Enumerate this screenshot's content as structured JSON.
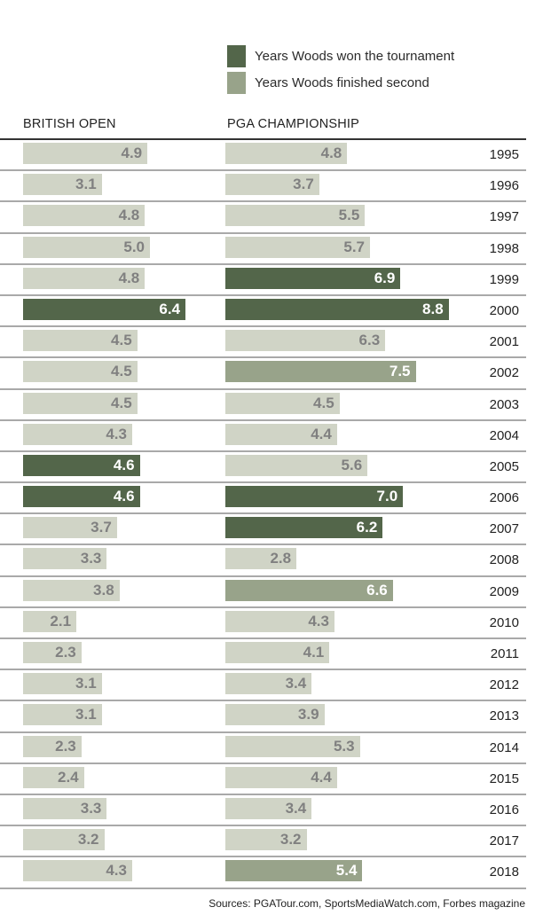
{
  "colors": {
    "won": "#53664a",
    "second": "#98a38a",
    "other": "#d0d4c6",
    "label_light": "#ffffff",
    "label_dark": "#808080"
  },
  "legend": [
    {
      "key": "won",
      "label": "Years Woods won the tournament"
    },
    {
      "key": "second",
      "label": "Years Woods finished second"
    }
  ],
  "columns": {
    "left": "BRITISH OPEN",
    "right": "PGA CHAMPIONSHIP"
  },
  "sources": "Sources: PGATour.com, SportsMediaWatch.com, Forbes magazine",
  "chart_data": {
    "type": "bar",
    "orientation": "horizontal",
    "xlim": [
      0,
      10
    ],
    "categories": [
      "1995",
      "1996",
      "1997",
      "1998",
      "1999",
      "2000",
      "2001",
      "2002",
      "2003",
      "2004",
      "2005",
      "2006",
      "2007",
      "2008",
      "2009",
      "2010",
      "2011",
      "2012",
      "2013",
      "2014",
      "2015",
      "2016",
      "2017",
      "2018"
    ],
    "series": [
      {
        "name": "BRITISH OPEN",
        "values": [
          4.9,
          3.1,
          4.8,
          5.0,
          4.8,
          6.4,
          4.5,
          4.5,
          4.5,
          4.3,
          4.6,
          4.6,
          3.7,
          3.3,
          3.8,
          2.1,
          2.3,
          3.1,
          3.1,
          2.3,
          2.4,
          3.3,
          3.2,
          4.3
        ],
        "status": [
          "other",
          "other",
          "other",
          "other",
          "other",
          "won",
          "other",
          "other",
          "other",
          "other",
          "won",
          "won",
          "other",
          "other",
          "other",
          "other",
          "other",
          "other",
          "other",
          "other",
          "other",
          "other",
          "other",
          "other"
        ]
      },
      {
        "name": "PGA CHAMPIONSHIP",
        "values": [
          4.8,
          3.7,
          5.5,
          5.7,
          6.9,
          8.8,
          6.3,
          7.5,
          4.5,
          4.4,
          5.6,
          7.0,
          6.2,
          2.8,
          6.6,
          4.3,
          4.1,
          3.4,
          3.9,
          5.3,
          4.4,
          3.4,
          3.2,
          5.4
        ],
        "status": [
          "other",
          "other",
          "other",
          "other",
          "won",
          "won",
          "other",
          "second",
          "other",
          "other",
          "other",
          "won",
          "won",
          "other",
          "second",
          "other",
          "other",
          "other",
          "other",
          "other",
          "other",
          "other",
          "other",
          "second"
        ]
      }
    ],
    "legend": [
      "Years Woods won the tournament",
      "Years Woods finished second"
    ],
    "legend_position": "top-right"
  }
}
